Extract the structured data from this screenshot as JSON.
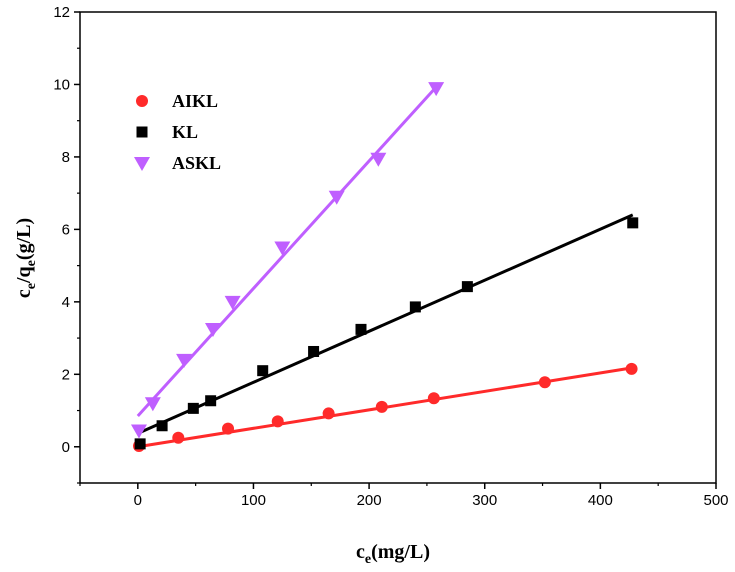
{
  "chart_data": {
    "type": "scatter",
    "xlabel": {
      "main": "c",
      "sub": "e",
      "tail": "(mg/L)"
    },
    "ylabel": {
      "main": "c",
      "sub1": "e",
      "mid": "/q",
      "sub2": "e",
      "tail": "(g/L)"
    },
    "xlim": [
      -50,
      500
    ],
    "ylim": [
      -1,
      12
    ],
    "xticks": [
      0,
      100,
      200,
      300,
      400,
      500
    ],
    "yticks": [
      0,
      2,
      4,
      6,
      8,
      10,
      12
    ],
    "grid": false,
    "legend_placement": "top-left",
    "series": [
      {
        "name": "AIKL",
        "marker": "circle",
        "color": "#ff2a2a",
        "x": [
          1,
          35,
          78,
          121,
          165,
          211,
          256,
          352,
          427
        ],
        "y": [
          0.02,
          0.25,
          0.5,
          0.7,
          0.92,
          1.1,
          1.34,
          1.78,
          2.15
        ],
        "fit": {
          "x": [
            0,
            428
          ],
          "y": [
            0.0,
            2.18
          ]
        }
      },
      {
        "name": "KL",
        "marker": "square",
        "color": "#000000",
        "x": [
          2,
          21,
          48,
          63,
          108,
          152,
          193,
          240,
          285,
          428
        ],
        "y": [
          0.08,
          0.58,
          1.06,
          1.27,
          2.1,
          2.63,
          3.24,
          3.86,
          4.42,
          6.18
        ],
        "fit": {
          "x": [
            0,
            428
          ],
          "y": [
            0.37,
            6.4
          ]
        }
      },
      {
        "name": "ASKL",
        "marker": "triangle-down",
        "color": "#bf5fff",
        "x": [
          1,
          13,
          40,
          65,
          82,
          125,
          172,
          208,
          258
        ],
        "y": [
          0.45,
          1.2,
          2.4,
          3.25,
          4.0,
          5.5,
          6.9,
          7.95,
          9.9
        ],
        "fit": {
          "x": [
            0,
            260
          ],
          "y": [
            0.85,
            10.0
          ]
        }
      }
    ]
  }
}
